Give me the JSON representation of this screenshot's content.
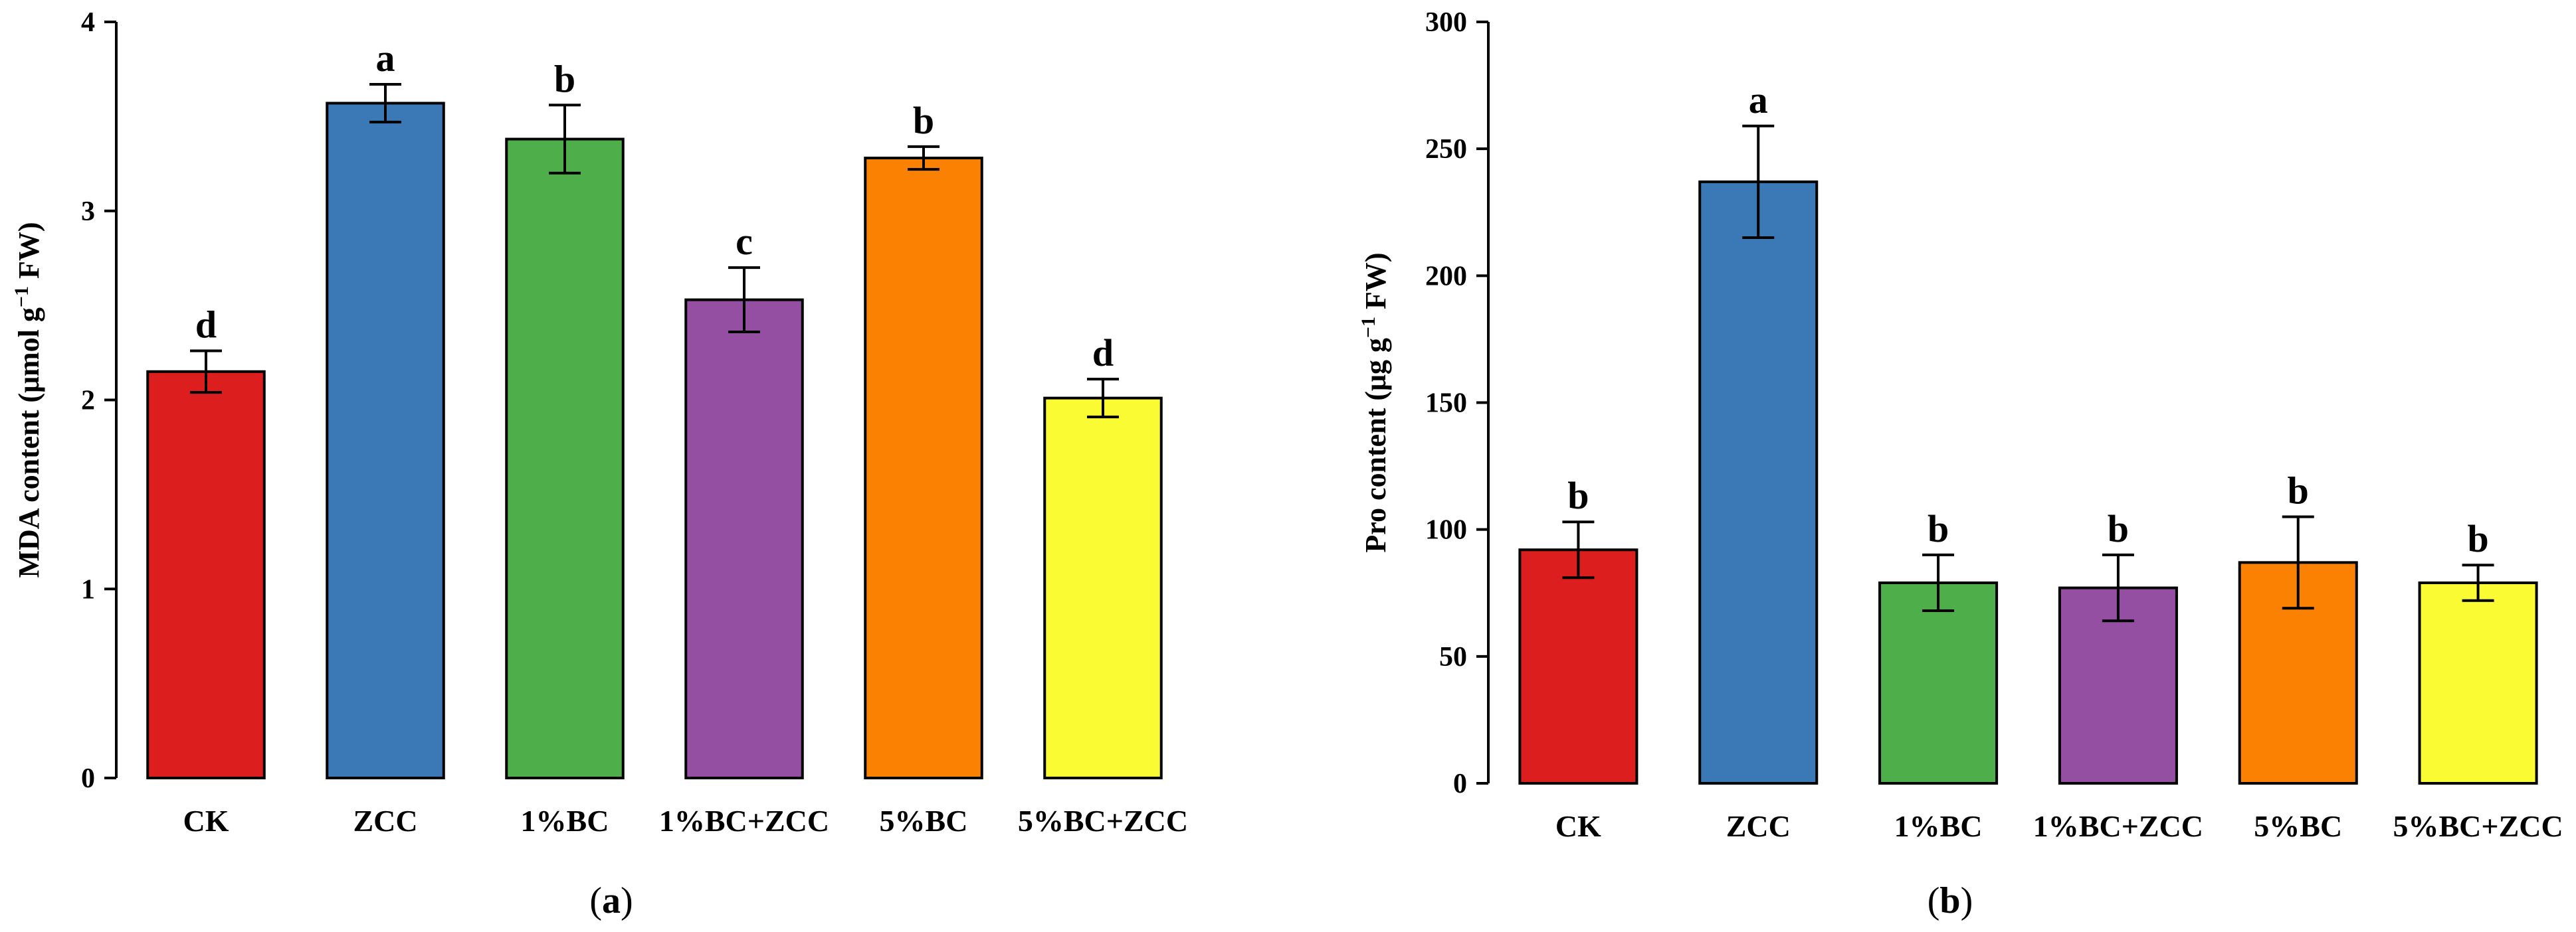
{
  "colors": [
    "#dc1e1e",
    "#3a78b6",
    "#4eae4a",
    "#944ea2",
    "#fb8103",
    "#fbfb33"
  ],
  "chart_data": [
    {
      "type": "bar",
      "panel_label": "a",
      "categories": [
        "CK",
        "ZCC",
        "1%BC",
        "1%BC+ZCC",
        "5%BC",
        "5%BC+ZCC"
      ],
      "values": [
        2.15,
        3.57,
        3.38,
        2.53,
        3.28,
        2.01
      ],
      "errors": [
        0.11,
        0.1,
        0.18,
        0.17,
        0.06,
        0.1
      ],
      "significance": [
        "d",
        "a",
        "b",
        "c",
        "b",
        "d"
      ],
      "ylabel": {
        "pre": "MDA content (μmol g",
        "sup": "−1",
        "post": " FW)"
      },
      "ylim": [
        0,
        4
      ],
      "yticks": [
        0,
        1,
        2,
        3,
        4
      ],
      "ytick_labels": [
        "0",
        "1",
        "2",
        "3",
        "4"
      ]
    },
    {
      "type": "bar",
      "panel_label": "b",
      "categories": [
        "CK",
        "ZCC",
        "1%BC",
        "1%BC+ZCC",
        "5%BC",
        "5%BC+ZCC"
      ],
      "values": [
        92,
        237,
        79,
        77,
        87,
        79
      ],
      "errors": [
        11,
        22,
        11,
        13,
        18,
        7
      ],
      "significance": [
        "b",
        "a",
        "b",
        "b",
        "b",
        "b"
      ],
      "ylabel": {
        "pre": "Pro content (μg g",
        "sup": "−1",
        "post": " FW)"
      },
      "ylim": [
        0,
        300
      ],
      "yticks": [
        0,
        50,
        100,
        150,
        200,
        250,
        300
      ],
      "ytick_labels": [
        "0",
        "50",
        "100",
        "150",
        "200",
        "250",
        "300"
      ]
    }
  ]
}
